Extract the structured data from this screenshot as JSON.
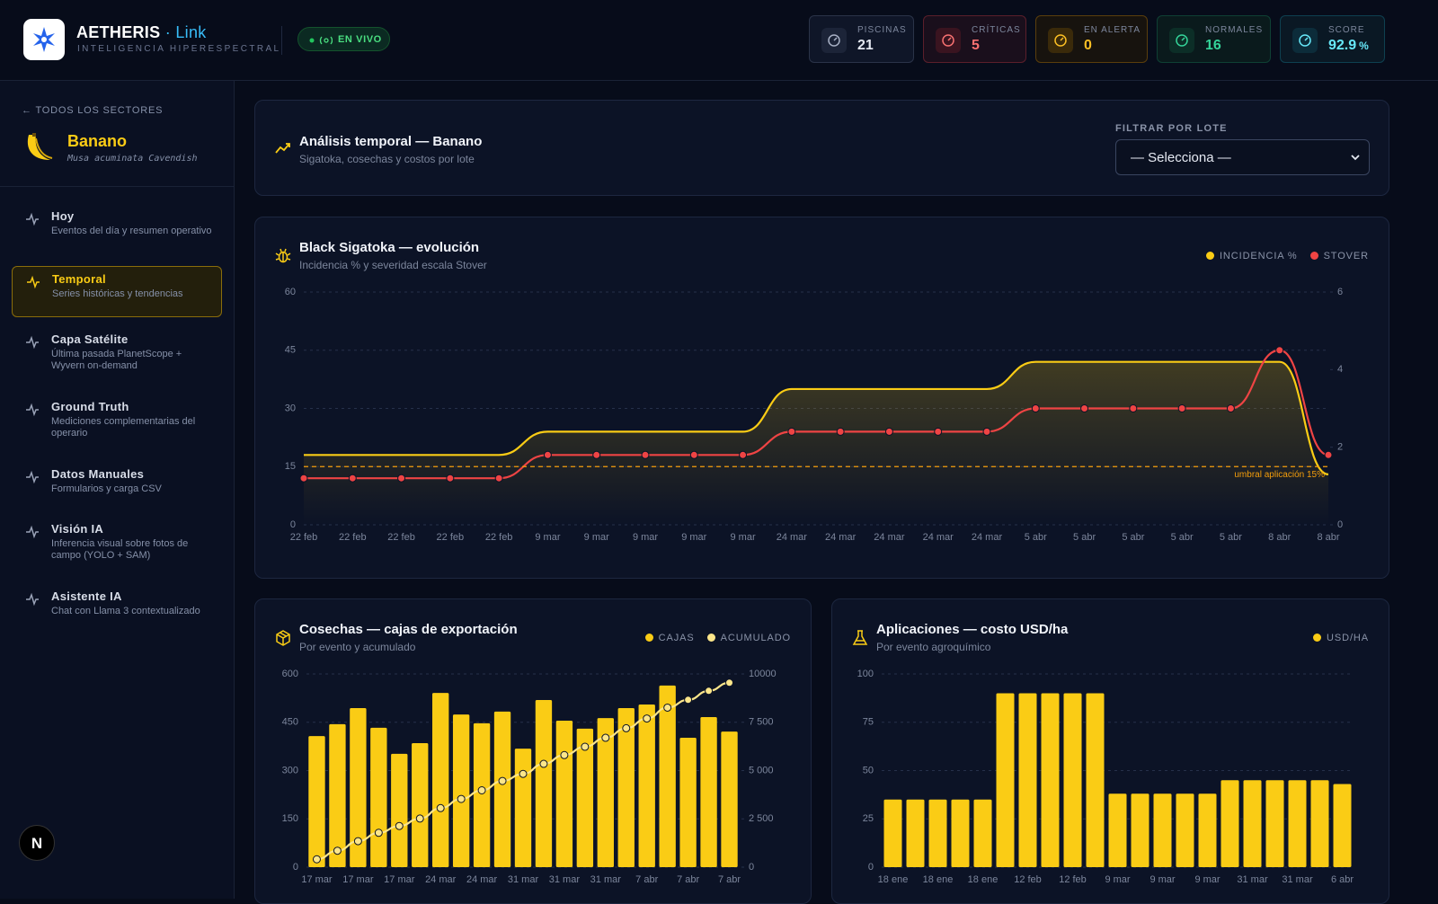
{
  "header": {
    "brand": "AETHERIS",
    "brand_suffix": "· Link",
    "tagline": "INTELIGENCIA HIPERESPECTRAL",
    "live": "EN VIVO",
    "stats": [
      {
        "label": "PISCINAS",
        "value": 21
      },
      {
        "label": "CRÍTICAS",
        "value": 5
      },
      {
        "label": "EN ALERTA",
        "value": 0
      },
      {
        "label": "NORMALES",
        "value": 16
      },
      {
        "label": "SCORE",
        "value": 92.9,
        "unit": "%"
      }
    ]
  },
  "sidebar": {
    "back": "TODOS LOS SECTORES",
    "crop": "Banano",
    "species": "Musa acuminata Cavendish",
    "nav": [
      {
        "title": "Hoy",
        "desc": "Eventos del día y resumen operativo"
      },
      {
        "title": "Temporal",
        "desc": "Series históricas y tendencias"
      },
      {
        "title": "Capa Satélite",
        "desc": "Última pasada PlanetScope + Wyvern on-demand"
      },
      {
        "title": "Ground Truth",
        "desc": "Mediciones complementarias del operario"
      },
      {
        "title": "Datos Manuales",
        "desc": "Formularios y carga CSV"
      },
      {
        "title": "Visión IA",
        "desc": "Inferencia visual sobre fotos de campo (YOLO + SAM)"
      },
      {
        "title": "Asistente IA",
        "desc": "Chat con Llama 3 contextualizado"
      }
    ],
    "dev_badge": "N"
  },
  "panel": {
    "title": "Análisis temporal — Banano",
    "subtitle": "Sigatoka, cosechas y costos por lote",
    "filter_label": "FILTRAR POR LOTE",
    "filter_placeholder": "— Selecciona —"
  },
  "chart_data": [
    {
      "type": "line",
      "title": "Black Sigatoka — evolución",
      "subtitle": "Incidencia % y severidad escala Stover",
      "categories": [
        "22 feb",
        "22 feb",
        "22 feb",
        "22 feb",
        "22 feb",
        "9 mar",
        "9 mar",
        "9 mar",
        "9 mar",
        "9 mar",
        "24 mar",
        "24 mar",
        "24 mar",
        "24 mar",
        "24 mar",
        "5 abr",
        "5 abr",
        "5 abr",
        "5 abr",
        "5 abr",
        "8 abr",
        "8 abr"
      ],
      "series": [
        {
          "name": "INCIDENCIA %",
          "color": "#facc15",
          "area": true,
          "values": [
            18,
            18,
            18,
            18,
            18,
            24,
            24,
            24,
            24,
            24,
            35,
            35,
            35,
            35,
            35,
            42,
            42,
            42,
            42,
            42,
            42,
            13
          ]
        },
        {
          "name": "STOVER",
          "color": "#ef4444",
          "axis": "y2",
          "markers": true,
          "values": [
            1.2,
            1.2,
            1.2,
            1.2,
            1.2,
            1.8,
            1.8,
            1.8,
            1.8,
            1.8,
            2.4,
            2.4,
            2.4,
            2.4,
            2.4,
            3.0,
            3.0,
            3.0,
            3.0,
            3.0,
            4.5,
            1.8
          ]
        }
      ],
      "ylim": [
        0,
        60
      ],
      "yticks": [
        0,
        15,
        30,
        45,
        60
      ],
      "y2lim": [
        0,
        6
      ],
      "y2ticks": [
        0,
        2,
        4,
        6
      ],
      "threshold": {
        "value": 15,
        "label": "umbral aplicación 15%",
        "color": "#f59e0b"
      },
      "grid": true
    },
    {
      "type": "combo",
      "title": "Cosechas — cajas de exportación",
      "subtitle": "Por evento y acumulado",
      "categories": [
        "17 mar",
        null,
        "17 mar",
        null,
        "17 mar",
        null,
        "24 mar",
        null,
        "24 mar",
        null,
        "31 mar",
        null,
        "31 mar",
        null,
        "31 mar",
        null,
        "7 abr",
        null,
        "7 abr",
        null,
        "7 abr"
      ],
      "series": [
        {
          "name": "CAJAS",
          "color": "#facc15",
          "type": "bar",
          "values": [
            407,
            444,
            494,
            433,
            352,
            385,
            541,
            474,
            447,
            483,
            368,
            519,
            455,
            430,
            463,
            494,
            505,
            564,
            402,
            466,
            421
          ]
        },
        {
          "name": "ACUMULADO",
          "color": "#fde68a",
          "type": "line",
          "axis": "y2",
          "markers": true,
          "values": [
            407,
            851,
            1345,
            1778,
            2130,
            2515,
            3056,
            3530,
            3977,
            4460,
            4828,
            5347,
            5802,
            6232,
            6695,
            7189,
            7694,
            8258,
            8660,
            9126,
            9547
          ]
        }
      ],
      "ylim": [
        0,
        600
      ],
      "yticks": [
        0,
        150,
        300,
        450,
        600
      ],
      "y2lim": [
        0,
        10000
      ],
      "y2ticks": [
        0,
        {
          "value": 2500,
          "label": "2 500"
        },
        {
          "value": 5000,
          "label": "5 000"
        },
        {
          "value": 7500,
          "label": "7 500"
        },
        10000
      ],
      "grid": true
    },
    {
      "type": "bar",
      "title": "Aplicaciones — costo USD/ha",
      "subtitle": "Por evento agroquímico",
      "categories": [
        "18 ene",
        null,
        "18 ene",
        null,
        "18 ene",
        null,
        "12 feb",
        null,
        "12 feb",
        null,
        "9 mar",
        null,
        "9 mar",
        null,
        "9 mar",
        null,
        "31 mar",
        null,
        "31 mar",
        null,
        "6 abr"
      ],
      "series": [
        {
          "name": "USD/HA",
          "color": "#facc15",
          "values": [
            35,
            35,
            35,
            35,
            35,
            90,
            90,
            90,
            90,
            90,
            38,
            38,
            38,
            38,
            38,
            45,
            45,
            45,
            45,
            45,
            43
          ]
        }
      ],
      "ylim": [
        0,
        100
      ],
      "yticks": [
        0,
        25,
        50,
        75,
        100
      ],
      "grid": true
    }
  ]
}
